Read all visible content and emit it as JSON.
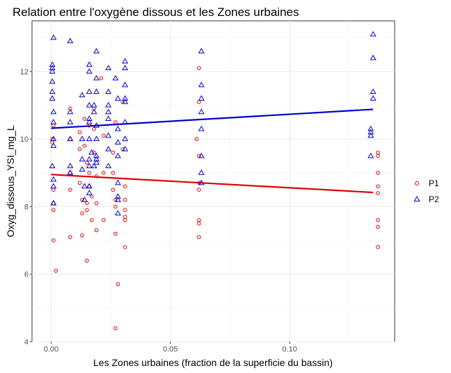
{
  "chart_data": {
    "type": "scatter",
    "title": "Relation entre l'oxygène dissous et les Zones urbaines",
    "xlabel": "Les Zones urbaines (fraction de la superficie du bassin)",
    "ylabel": "Oxyg_dissous_YSI_mg_L",
    "xlim": [
      -0.008,
      0.144
    ],
    "ylim": [
      4.0,
      13.5
    ],
    "x_ticks": [
      0.0,
      0.05,
      0.1
    ],
    "x_tick_labels": [
      "0.00",
      "0.05",
      "0.10"
    ],
    "y_ticks": [
      4,
      6,
      8,
      10,
      12
    ],
    "y_tick_labels": [
      "4",
      "6",
      "8",
      "10",
      "12"
    ],
    "grid": true,
    "legend_position": "right",
    "colors": {
      "P1": "#e00000",
      "P2": "#0000cc"
    },
    "series": [
      {
        "name": "P1",
        "marker": "circle",
        "color": "#e00000",
        "trend": [
          [
            0.0,
            8.95
          ],
          [
            0.135,
            8.42
          ]
        ],
        "points": [
          [
            0.001,
            10.4
          ],
          [
            0.0005,
            10.0
          ],
          [
            0.0005,
            9.9
          ],
          [
            0.001,
            8.5
          ],
          [
            0.001,
            8.1
          ],
          [
            0.001,
            7.9
          ],
          [
            0.001,
            7.0
          ],
          [
            0.002,
            6.1
          ],
          [
            0.008,
            10.9
          ],
          [
            0.008,
            10.0
          ],
          [
            0.008,
            9.0
          ],
          [
            0.008,
            8.5
          ],
          [
            0.008,
            7.1
          ],
          [
            0.012,
            10.2
          ],
          [
            0.012,
            9.7
          ],
          [
            0.012,
            8.7
          ],
          [
            0.013,
            8.2
          ],
          [
            0.013,
            7.8
          ],
          [
            0.013,
            7.15
          ],
          [
            0.014,
            10.6
          ],
          [
            0.014,
            9.8
          ],
          [
            0.015,
            9.3
          ],
          [
            0.015,
            8.1
          ],
          [
            0.015,
            7.9
          ],
          [
            0.015,
            6.4
          ],
          [
            0.016,
            10.4
          ],
          [
            0.016,
            9.0
          ],
          [
            0.016,
            8.6
          ],
          [
            0.017,
            8.3
          ],
          [
            0.017,
            7.6
          ],
          [
            0.018,
            10.9
          ],
          [
            0.018,
            10.3
          ],
          [
            0.018,
            9.6
          ],
          [
            0.019,
            8.9
          ],
          [
            0.019,
            8.1
          ],
          [
            0.019,
            7.3
          ],
          [
            0.021,
            11.8
          ],
          [
            0.022,
            10.1
          ],
          [
            0.022,
            9.0
          ],
          [
            0.022,
            7.6
          ],
          [
            0.026,
            9.6
          ],
          [
            0.026,
            9.0
          ],
          [
            0.026,
            8.5
          ],
          [
            0.027,
            10.5
          ],
          [
            0.027,
            8.2
          ],
          [
            0.027,
            8.0
          ],
          [
            0.027,
            7.2
          ],
          [
            0.028,
            5.7
          ],
          [
            0.027,
            4.4
          ],
          [
            0.03,
            11.1
          ],
          [
            0.03,
            9.7
          ],
          [
            0.031,
            8.6
          ],
          [
            0.031,
            8.2
          ],
          [
            0.031,
            7.9
          ],
          [
            0.031,
            7.7
          ],
          [
            0.031,
            7.6
          ],
          [
            0.031,
            6.8
          ],
          [
            0.062,
            12.1
          ],
          [
            0.062,
            11.1
          ],
          [
            0.061,
            10.0
          ],
          [
            0.062,
            9.5
          ],
          [
            0.062,
            8.7
          ],
          [
            0.062,
            8.5
          ],
          [
            0.062,
            7.6
          ],
          [
            0.062,
            7.5
          ],
          [
            0.062,
            7.1
          ],
          [
            0.137,
            9.6
          ],
          [
            0.137,
            9.5
          ],
          [
            0.137,
            9.0
          ],
          [
            0.137,
            8.6
          ],
          [
            0.137,
            8.4
          ],
          [
            0.137,
            7.6
          ],
          [
            0.137,
            7.4
          ],
          [
            0.137,
            6.8
          ]
        ]
      },
      {
        "name": "P2",
        "marker": "triangle",
        "color": "#0000cc",
        "trend": [
          [
            0.0,
            10.32
          ],
          [
            0.135,
            10.88
          ]
        ],
        "points": [
          [
            0.001,
            13.0
          ],
          [
            0.0005,
            12.2
          ],
          [
            0.0005,
            12.1
          ],
          [
            0.0005,
            12.0
          ],
          [
            0.0005,
            11.7
          ],
          [
            0.0005,
            11.4
          ],
          [
            0.0005,
            11.2
          ],
          [
            0.001,
            10.8
          ],
          [
            0.001,
            10.5
          ],
          [
            0.001,
            10.0
          ],
          [
            0.001,
            9.8
          ],
          [
            0.0005,
            9.2
          ],
          [
            0.001,
            8.8
          ],
          [
            0.001,
            8.6
          ],
          [
            0.001,
            8.1
          ],
          [
            0.008,
            12.9
          ],
          [
            0.008,
            10.8
          ],
          [
            0.008,
            10.5
          ],
          [
            0.008,
            10.0
          ],
          [
            0.008,
            9.2
          ],
          [
            0.008,
            9.0
          ],
          [
            0.013,
            11.3
          ],
          [
            0.013,
            10.0
          ],
          [
            0.013,
            9.4
          ],
          [
            0.013,
            9.1
          ],
          [
            0.014,
            8.6
          ],
          [
            0.014,
            8.2
          ],
          [
            0.016,
            12.2
          ],
          [
            0.016,
            12.0
          ],
          [
            0.016,
            11.4
          ],
          [
            0.016,
            11.0
          ],
          [
            0.016,
            10.6
          ],
          [
            0.016,
            10.5
          ],
          [
            0.016,
            10.0
          ],
          [
            0.017,
            9.6
          ],
          [
            0.016,
            9.4
          ],
          [
            0.016,
            9.2
          ],
          [
            0.016,
            8.6
          ],
          [
            0.016,
            8.4
          ],
          [
            0.019,
            12.6
          ],
          [
            0.019,
            11.8
          ],
          [
            0.019,
            11.4
          ],
          [
            0.018,
            11.0
          ],
          [
            0.018,
            10.8
          ],
          [
            0.019,
            10.4
          ],
          [
            0.019,
            10.0
          ],
          [
            0.019,
            9.5
          ],
          [
            0.019,
            9.4
          ],
          [
            0.019,
            9.3
          ],
          [
            0.018,
            9.2
          ],
          [
            0.024,
            12.1
          ],
          [
            0.024,
            11.4
          ],
          [
            0.024,
            11.0
          ],
          [
            0.024,
            10.8
          ],
          [
            0.024,
            10.6
          ],
          [
            0.024,
            10.1
          ],
          [
            0.024,
            9.7
          ],
          [
            0.024,
            9.2
          ],
          [
            0.027,
            11.8
          ],
          [
            0.028,
            11.2
          ],
          [
            0.028,
            10.3
          ],
          [
            0.028,
            9.9
          ],
          [
            0.028,
            9.5
          ],
          [
            0.028,
            8.7
          ],
          [
            0.028,
            8.3
          ],
          [
            0.028,
            8.2
          ],
          [
            0.028,
            7.8
          ],
          [
            0.031,
            12.3
          ],
          [
            0.031,
            12.1
          ],
          [
            0.031,
            11.6
          ],
          [
            0.031,
            11.2
          ],
          [
            0.031,
            11.1
          ],
          [
            0.031,
            10.5
          ],
          [
            0.031,
            10.0
          ],
          [
            0.031,
            9.7
          ],
          [
            0.063,
            12.6
          ],
          [
            0.063,
            11.6
          ],
          [
            0.063,
            11.2
          ],
          [
            0.063,
            10.8
          ],
          [
            0.063,
            10.3
          ],
          [
            0.063,
            9.5
          ],
          [
            0.063,
            9.0
          ],
          [
            0.063,
            8.7
          ],
          [
            0.135,
            13.1
          ],
          [
            0.135,
            12.4
          ],
          [
            0.135,
            11.4
          ],
          [
            0.135,
            11.2
          ],
          [
            0.134,
            10.3
          ],
          [
            0.134,
            10.2
          ],
          [
            0.134,
            10.1
          ],
          [
            0.134,
            9.5
          ]
        ]
      }
    ]
  }
}
